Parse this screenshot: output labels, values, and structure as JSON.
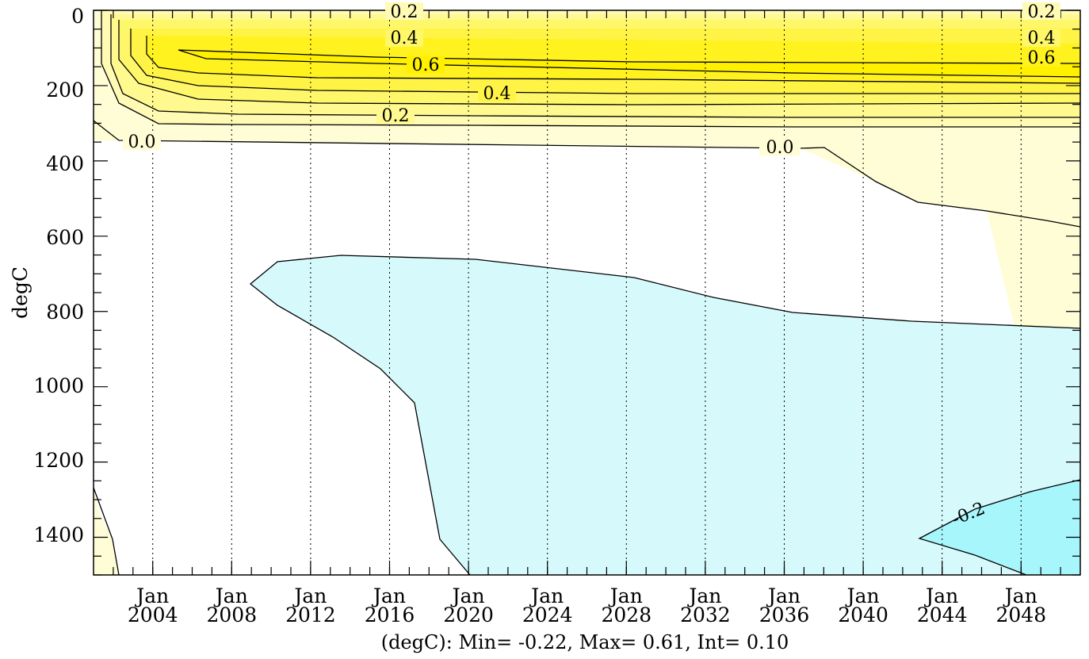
{
  "chart_data": {
    "type": "contour",
    "title": "",
    "ylabel": "degC",
    "xlabel": "",
    "footer": "(degC): Min= -0.22, Max= 0.61, Int= 0.10",
    "x_range": [
      "2001-01",
      "2051-01"
    ],
    "y_range": [
      0,
      1500
    ],
    "y_reversed": true,
    "y_ticks": [
      "0",
      "200",
      "400",
      "600",
      "800",
      "1000",
      "1200",
      "1400"
    ],
    "x_ticks": [
      {
        "month": "Jan",
        "year": "2004"
      },
      {
        "month": "Jan",
        "year": "2008"
      },
      {
        "month": "Jan",
        "year": "2012"
      },
      {
        "month": "Jan",
        "year": "2016"
      },
      {
        "month": "Jan",
        "year": "2020"
      },
      {
        "month": "Jan",
        "year": "2024"
      },
      {
        "month": "Jan",
        "year": "2028"
      },
      {
        "month": "Jan",
        "year": "2032"
      },
      {
        "month": "Jan",
        "year": "2036"
      },
      {
        "month": "Jan",
        "year": "2040"
      },
      {
        "month": "Jan",
        "year": "2044"
      },
      {
        "month": "Jan",
        "year": "2048"
      }
    ],
    "vertical_grid": "dotted",
    "contour_levels": [
      -0.2,
      -0.1,
      0.0,
      0.1,
      0.2,
      0.3,
      0.4,
      0.5,
      0.6
    ],
    "contour_labels": [
      "0.2",
      "0.4",
      "0.6",
      "0.4",
      "0.2",
      "0.0",
      "0.0",
      "0.2",
      "0.4",
      "0.6",
      "-0.2"
    ],
    "fill_colors": {
      "below_-0.2": "#a6f6fb",
      "-0.2_to_-0.1": "#d6fafc",
      "-0.1_to_0.0": "#ffffff",
      "0.0_to_0.1": "#fffdd6",
      "0.1_to_0.2": "#fffbb4",
      "0.2_to_0.3": "#fff98f",
      "0.3_to_0.4": "#fff76a",
      "0.4_to_0.5": "#fff445",
      "0.5_to_0.6": "#fff21f",
      "above_0.6": "#fff000"
    }
  }
}
